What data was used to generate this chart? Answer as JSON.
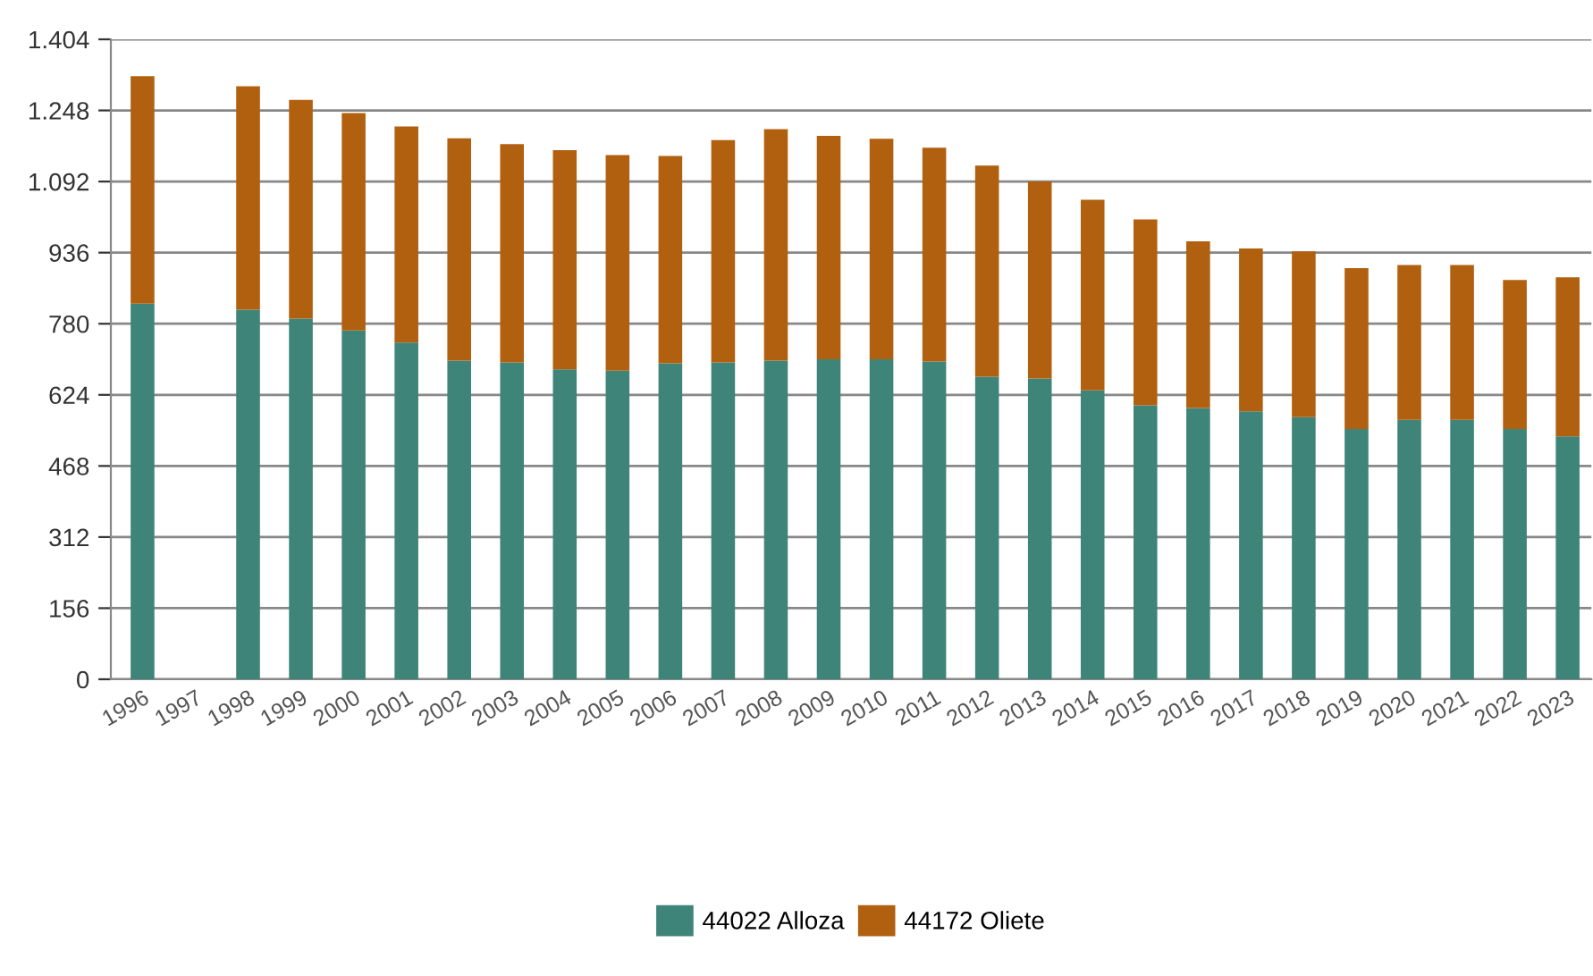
{
  "chart_data": {
    "type": "bar",
    "stacked": true,
    "categories": [
      "1996",
      "1997",
      "1998",
      "1999",
      "2000",
      "2001",
      "2002",
      "2003",
      "2004",
      "2005",
      "2006",
      "2007",
      "2008",
      "2009",
      "2010",
      "2011",
      "2012",
      "2013",
      "2014",
      "2015",
      "2016",
      "2017",
      "2018",
      "2019",
      "2020",
      "2021",
      "2022",
      "2023"
    ],
    "series": [
      {
        "name": "44022 Alloza",
        "color": "#3f8479",
        "values": [
          824,
          null,
          811,
          791,
          765,
          739,
          699,
          695,
          680,
          677,
          693,
          695,
          699,
          702,
          702,
          697,
          664,
          660,
          634,
          601,
          595,
          588,
          575,
          549,
          569,
          569,
          549,
          533
        ]
      },
      {
        "name": "44172 Oliete",
        "color": "#b1600f",
        "values": [
          499,
          null,
          490,
          480,
          477,
          474,
          488,
          479,
          481,
          473,
          455,
          488,
          508,
          490,
          484,
          469,
          463,
          432,
          418,
          408,
          366,
          357,
          364,
          353,
          340,
          340,
          327,
          349
        ]
      }
    ],
    "ylim": [
      0,
      1404
    ],
    "yticks": [
      0,
      156,
      312,
      468,
      624,
      780,
      936,
      {
        "value": 1092,
        "label": "1.092"
      },
      {
        "value": 1248,
        "label": "1.248"
      },
      {
        "value": 1404,
        "label": "1.404"
      }
    ],
    "grid": "y",
    "legend": "bottom"
  }
}
